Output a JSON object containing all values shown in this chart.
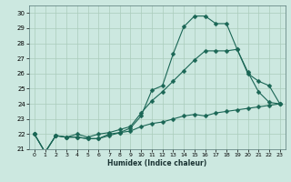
{
  "xlabel": "Humidex (Indice chaleur)",
  "bg_color": "#cce8e0",
  "grid_color": "#aaccbb",
  "line_color": "#1a6655",
  "xlim": [
    -0.5,
    23.5
  ],
  "ylim": [
    21,
    30.5
  ],
  "xticks": [
    0,
    1,
    2,
    3,
    4,
    5,
    6,
    7,
    8,
    9,
    10,
    11,
    12,
    13,
    14,
    15,
    16,
    17,
    18,
    19,
    20,
    21,
    22,
    23
  ],
  "yticks": [
    21,
    22,
    23,
    24,
    25,
    26,
    27,
    28,
    29,
    30
  ],
  "series": [
    {
      "x": [
        0,
        1,
        2,
        3,
        4,
        5,
        6,
        7,
        8,
        9,
        10,
        11,
        12,
        13,
        14,
        15,
        16,
        17,
        18,
        19,
        20,
        21,
        22,
        23
      ],
      "y": [
        22,
        20.8,
        21.9,
        21.8,
        21.8,
        21.7,
        21.7,
        22.0,
        22.1,
        22.4,
        23.2,
        24.9,
        25.2,
        27.3,
        29.1,
        29.8,
        29.8,
        29.3,
        29.3,
        27.6,
        26.1,
        24.8,
        24.1,
        24.0
      ],
      "marker": "D",
      "ms": 2.5
    },
    {
      "x": [
        0,
        1,
        2,
        3,
        4,
        5,
        6,
        7,
        8,
        9,
        10,
        11,
        12,
        13,
        14,
        15,
        16,
        17,
        18,
        19,
        20,
        21,
        22,
        23
      ],
      "y": [
        22,
        20.8,
        21.9,
        21.8,
        22.0,
        21.8,
        22.0,
        22.1,
        22.3,
        22.5,
        23.4,
        24.2,
        24.8,
        25.5,
        26.2,
        26.9,
        27.5,
        27.5,
        27.5,
        27.6,
        26.0,
        25.5,
        25.2,
        24.0
      ],
      "marker": "D",
      "ms": 2.5
    },
    {
      "x": [
        0,
        1,
        2,
        3,
        4,
        5,
        6,
        7,
        8,
        9,
        10,
        11,
        12,
        13,
        14,
        15,
        16,
        17,
        18,
        19,
        20,
        21,
        22,
        23
      ],
      "y": [
        22,
        20.8,
        21.9,
        21.8,
        21.8,
        21.7,
        21.7,
        21.9,
        22.1,
        22.2,
        22.5,
        22.7,
        22.8,
        23.0,
        23.2,
        23.3,
        23.2,
        23.4,
        23.5,
        23.6,
        23.7,
        23.8,
        23.9,
        24.0
      ],
      "marker": "D",
      "ms": 2.5
    }
  ]
}
